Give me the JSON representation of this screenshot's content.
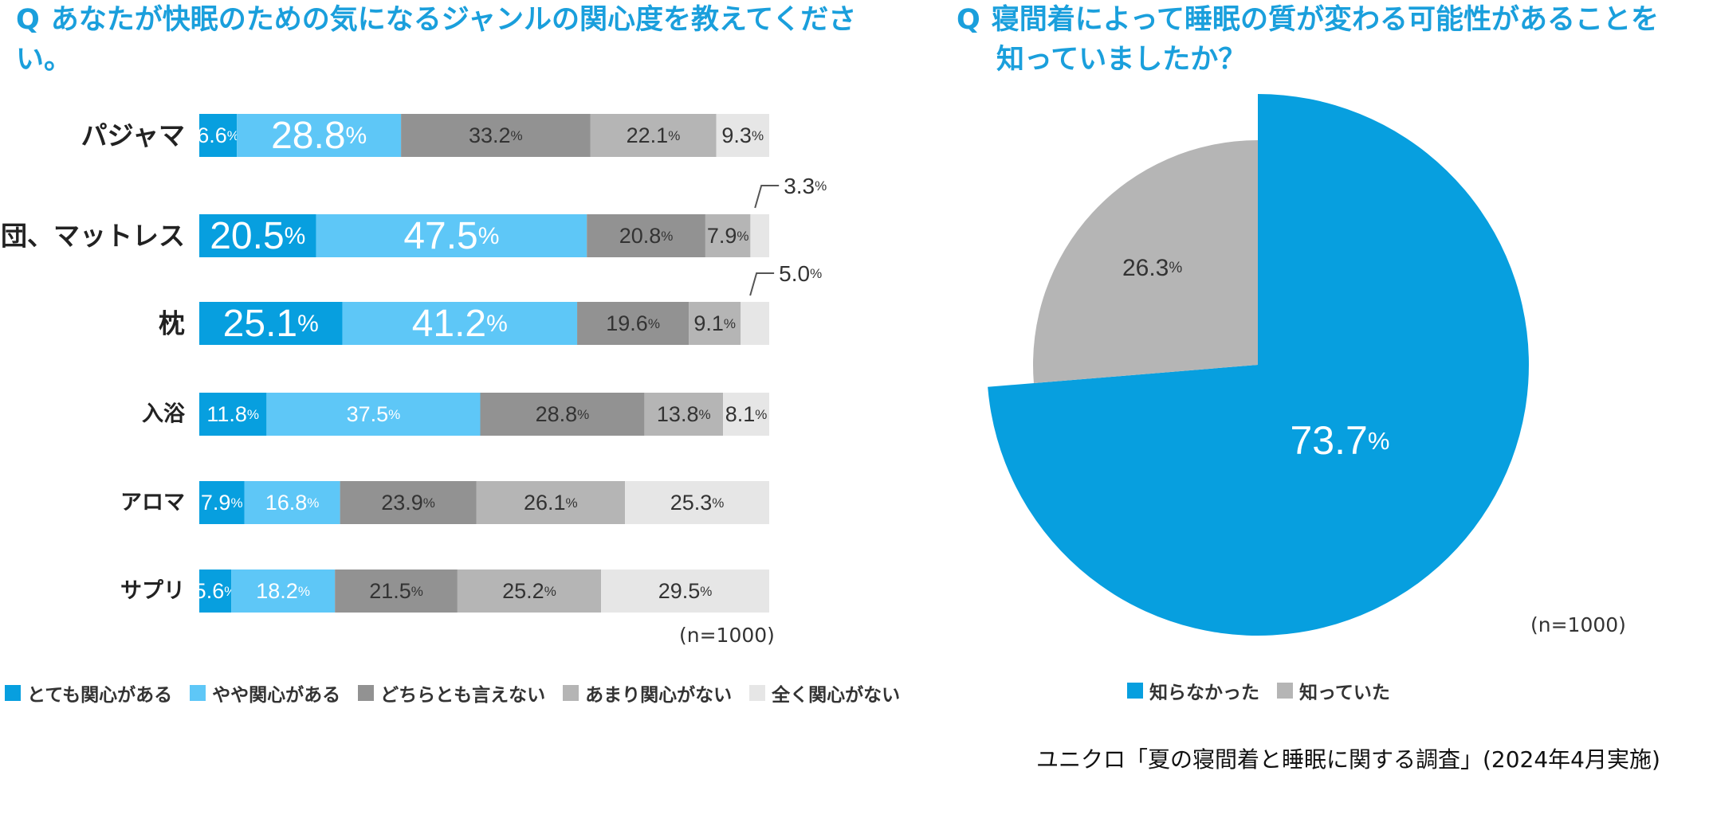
{
  "chart_data": [
    {
      "type": "bar",
      "orientation": "horizontal",
      "stacked": true,
      "question_mark": "Q",
      "title": "あなたが快眠のための気になるジャンルの関心度を教えてください。",
      "categories": [
        "パジャマ",
        "布団、マットレス",
        "枕",
        "入浴",
        "アロマ",
        "サプリ"
      ],
      "series": [
        {
          "name": "とても関心がある",
          "color": "#079fdf",
          "values": [
            6.6,
            20.5,
            25.1,
            11.8,
            7.9,
            5.6
          ]
        },
        {
          "name": "やや関心がある",
          "color": "#5ec7f7",
          "values": [
            28.8,
            47.5,
            41.2,
            37.5,
            16.8,
            18.2
          ]
        },
        {
          "name": "どちらとも言えない",
          "color": "#929292",
          "values": [
            33.2,
            20.8,
            19.6,
            28.8,
            23.9,
            21.5
          ]
        },
        {
          "name": "あまり関心がない",
          "color": "#b5b5b5",
          "values": [
            22.1,
            7.9,
            9.1,
            13.8,
            26.1,
            25.2
          ]
        },
        {
          "name": "全く関心がない",
          "color": "#e6e6e6",
          "values": [
            9.3,
            3.3,
            5.0,
            8.1,
            25.3,
            29.5
          ]
        }
      ],
      "unit": "%",
      "note": "(n=1000)",
      "legend_position": "bottom"
    },
    {
      "type": "pie",
      "question_mark": "Q",
      "title_line1": "寝間着によって睡眠の質が変わる可能性があることを",
      "title_line2": "知っていましたか？",
      "labels": [
        "知らなかった",
        "知っていた"
      ],
      "values": [
        73.7,
        26.3
      ],
      "colors": [
        "#079fdf",
        "#b5b5b5"
      ],
      "unit": "%",
      "note": "(n=1000)",
      "legend_position": "bottom"
    }
  ],
  "source": "ユニクロ「夏の寝間着と睡眠に関する調査」(2024年4月実施)"
}
